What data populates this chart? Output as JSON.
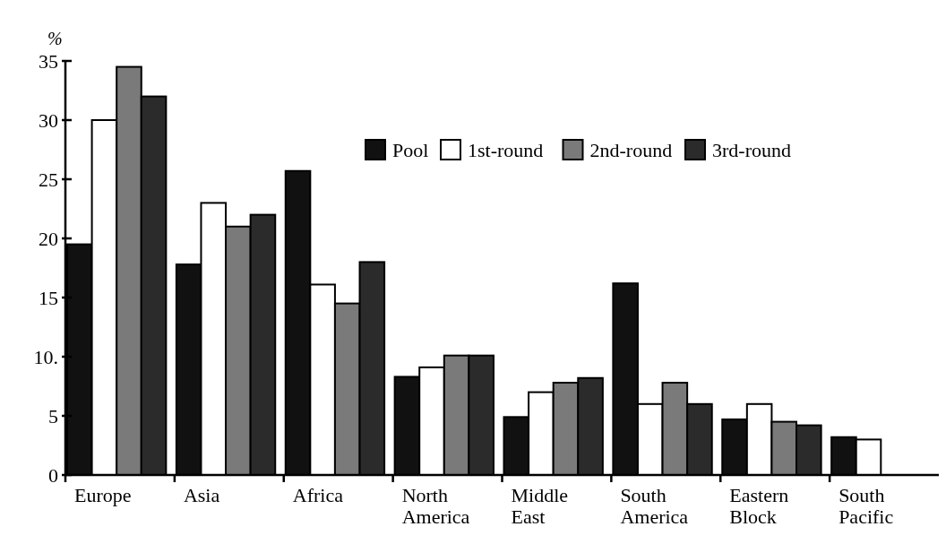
{
  "chart_data": {
    "type": "bar",
    "ylabel": "%",
    "categories": [
      "Europe",
      "Asia",
      "Africa",
      "North America",
      "Middle East",
      "South America",
      "Eastern Block",
      "South Pacific"
    ],
    "series": [
      {
        "name": "Pool",
        "color": "#111111",
        "values": [
          19.5,
          17.8,
          25.7,
          8.3,
          4.9,
          16.2,
          4.7,
          3.2
        ]
      },
      {
        "name": "1st-round",
        "color": "#ffffff",
        "values": [
          30,
          23,
          16.1,
          9.1,
          7,
          6,
          6,
          3
        ]
      },
      {
        "name": "2nd-round",
        "color": "#7a7a7a",
        "values": [
          34.5,
          21,
          14.5,
          10.1,
          7.8,
          7.8,
          4.5,
          null
        ]
      },
      {
        "name": "3rd-round",
        "color": "#2b2b2b",
        "values": [
          32,
          22,
          18,
          10.1,
          8.2,
          6,
          4.2,
          null
        ]
      }
    ],
    "ylim": [
      0,
      35
    ],
    "yticks": [
      0,
      5,
      {
        "value": 10,
        "label": "10."
      },
      15,
      20,
      25,
      30,
      35
    ],
    "legend": "top right",
    "grid": false
  }
}
